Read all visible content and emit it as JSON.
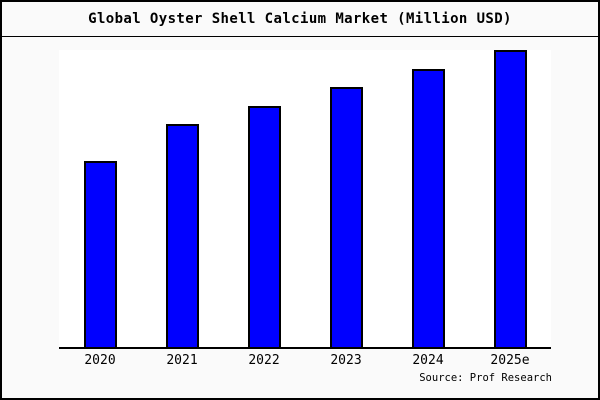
{
  "window": {
    "background": "#fafafa",
    "border_color": "#000000"
  },
  "header": {
    "title": "Global Oyster Shell Calcium Market (Million USD)"
  },
  "chart_data": {
    "type": "bar",
    "title": "Global Oyster Shell Calcium Market (Million USD)",
    "categories": [
      "2020",
      "2021",
      "2022",
      "2023",
      "2024",
      "2025e"
    ],
    "values": [
      100,
      120,
      130,
      140,
      150,
      160
    ],
    "value_scale": "relative index estimated from bar heights (y-axis has no tick labels)",
    "xlabel": "",
    "ylabel": "",
    "ylim": [
      0,
      160
    ],
    "grid": false,
    "legend_position": "none",
    "bar_color": "#0000ff",
    "bar_border_color": "#000000",
    "plot_background": "#ffffff",
    "axis_line_color": "#000000"
  },
  "footer": {
    "source_label": "Source: Prof Research"
  }
}
